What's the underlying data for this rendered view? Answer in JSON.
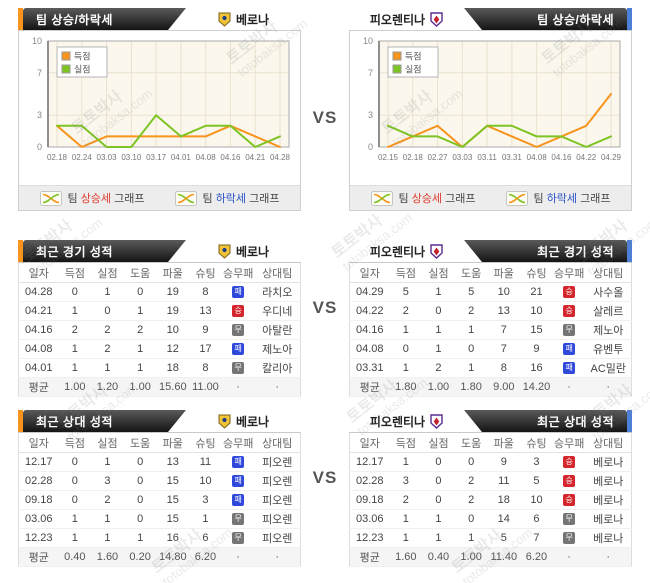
{
  "watermark": {
    "brand": "토토박사",
    "domain": "totobaksa.com"
  },
  "vs_label": "VS",
  "teams": {
    "home": {
      "name": "베로나"
    },
    "away": {
      "name": "피오렌티나"
    }
  },
  "sections": {
    "trend": {
      "title": "팀 상승/하락세"
    },
    "recent": {
      "title": "최근 경기 성적"
    },
    "h2h": {
      "title": "최근 상대 성적"
    }
  },
  "chart_footer": {
    "prefix": "팀",
    "rise": "상승세",
    "fall": "하락세",
    "suffix": "그래프"
  },
  "chart_data": [
    {
      "type": "line",
      "team": "베로나",
      "x": [
        "02.18",
        "02.24",
        "03.03",
        "03.10",
        "03.17",
        "04.01",
        "04.08",
        "04.16",
        "04.21",
        "04.28"
      ],
      "ylim": [
        0,
        10
      ],
      "yticks": [
        0,
        3,
        7,
        10
      ],
      "series": [
        {
          "name": "득점",
          "color": "#F7941E",
          "values": [
            2,
            0,
            1,
            1,
            1,
            1,
            1,
            2,
            1,
            0
          ]
        },
        {
          "name": "실점",
          "color": "#7EC425",
          "values": [
            2,
            2,
            0,
            0,
            3,
            1,
            2,
            2,
            0,
            1
          ]
        }
      ]
    },
    {
      "type": "line",
      "team": "피오렌티나",
      "x": [
        "02.15",
        "02.18",
        "02.27",
        "03.03",
        "03.11",
        "03.31",
        "04.08",
        "04.16",
        "04.22",
        "04.29"
      ],
      "ylim": [
        0,
        10
      ],
      "yticks": [
        0,
        3,
        7,
        10
      ],
      "series": [
        {
          "name": "득점",
          "color": "#F7941E",
          "values": [
            0,
            1,
            2,
            0,
            2,
            1,
            0,
            1,
            2,
            5
          ]
        },
        {
          "name": "실점",
          "color": "#7EC425",
          "values": [
            2,
            1,
            1,
            0,
            2,
            2,
            1,
            1,
            0,
            1
          ]
        }
      ]
    }
  ],
  "tables": {
    "columns": [
      "일자",
      "득점",
      "실점",
      "도움",
      "파울",
      "슈팅",
      "승무패",
      "상대팀"
    ],
    "avg_label": "평균",
    "empty_cell": "·",
    "recent_home": {
      "rows": [
        {
          "date": "04.28",
          "gf": "0",
          "ga": "1",
          "assist": "0",
          "foul": "19",
          "shot": "8",
          "result": "패",
          "opponent": "라치오"
        },
        {
          "date": "04.21",
          "gf": "1",
          "ga": "0",
          "assist": "1",
          "foul": "19",
          "shot": "13",
          "result": "승",
          "opponent": "우디네"
        },
        {
          "date": "04.16",
          "gf": "2",
          "ga": "2",
          "assist": "2",
          "foul": "10",
          "shot": "9",
          "result": "무",
          "opponent": "아탈란"
        },
        {
          "date": "04.08",
          "gf": "1",
          "ga": "2",
          "assist": "1",
          "foul": "12",
          "shot": "17",
          "result": "패",
          "opponent": "제노아"
        },
        {
          "date": "04.01",
          "gf": "1",
          "ga": "1",
          "assist": "1",
          "foul": "18",
          "shot": "8",
          "result": "무",
          "opponent": "칼리아"
        }
      ],
      "avg": [
        "1.00",
        "1.20",
        "1.00",
        "15.60",
        "11.00"
      ]
    },
    "recent_away": {
      "rows": [
        {
          "date": "04.29",
          "gf": "5",
          "ga": "1",
          "assist": "5",
          "foul": "10",
          "shot": "21",
          "result": "승",
          "opponent": "사수올"
        },
        {
          "date": "04.22",
          "gf": "2",
          "ga": "0",
          "assist": "2",
          "foul": "13",
          "shot": "10",
          "result": "승",
          "opponent": "살레르"
        },
        {
          "date": "04.16",
          "gf": "1",
          "ga": "1",
          "assist": "1",
          "foul": "7",
          "shot": "15",
          "result": "무",
          "opponent": "제노아"
        },
        {
          "date": "04.08",
          "gf": "0",
          "ga": "1",
          "assist": "0",
          "foul": "7",
          "shot": "9",
          "result": "패",
          "opponent": "유벤투"
        },
        {
          "date": "03.31",
          "gf": "1",
          "ga": "2",
          "assist": "1",
          "foul": "8",
          "shot": "16",
          "result": "패",
          "opponent": "AC밀란"
        }
      ],
      "avg": [
        "1.80",
        "1.00",
        "1.80",
        "9.00",
        "14.20"
      ]
    },
    "h2h_home": {
      "rows": [
        {
          "date": "12.17",
          "gf": "0",
          "ga": "1",
          "assist": "0",
          "foul": "13",
          "shot": "11",
          "result": "패",
          "opponent": "피오렌"
        },
        {
          "date": "02.28",
          "gf": "0",
          "ga": "3",
          "assist": "0",
          "foul": "15",
          "shot": "10",
          "result": "패",
          "opponent": "피오렌"
        },
        {
          "date": "09.18",
          "gf": "0",
          "ga": "2",
          "assist": "0",
          "foul": "15",
          "shot": "3",
          "result": "패",
          "opponent": "피오렌"
        },
        {
          "date": "03.06",
          "gf": "1",
          "ga": "1",
          "assist": "0",
          "foul": "15",
          "shot": "1",
          "result": "무",
          "opponent": "피오렌"
        },
        {
          "date": "12.23",
          "gf": "1",
          "ga": "1",
          "assist": "1",
          "foul": "16",
          "shot": "6",
          "result": "무",
          "opponent": "피오렌"
        }
      ],
      "avg": [
        "0.40",
        "1.60",
        "0.20",
        "14.80",
        "6.20"
      ]
    },
    "h2h_away": {
      "rows": [
        {
          "date": "12.17",
          "gf": "1",
          "ga": "0",
          "assist": "0",
          "foul": "9",
          "shot": "3",
          "result": "승",
          "opponent": "베로나"
        },
        {
          "date": "02.28",
          "gf": "3",
          "ga": "0",
          "assist": "2",
          "foul": "11",
          "shot": "5",
          "result": "승",
          "opponent": "베로나"
        },
        {
          "date": "09.18",
          "gf": "2",
          "ga": "0",
          "assist": "2",
          "foul": "18",
          "shot": "10",
          "result": "승",
          "opponent": "베로나"
        },
        {
          "date": "03.06",
          "gf": "1",
          "ga": "1",
          "assist": "0",
          "foul": "14",
          "shot": "6",
          "result": "무",
          "opponent": "베로나"
        },
        {
          "date": "12.23",
          "gf": "1",
          "ga": "1",
          "assist": "1",
          "foul": "5",
          "shot": "7",
          "result": "무",
          "opponent": "베로나"
        }
      ],
      "avg": [
        "1.60",
        "0.40",
        "1.00",
        "11.40",
        "6.20"
      ]
    }
  }
}
